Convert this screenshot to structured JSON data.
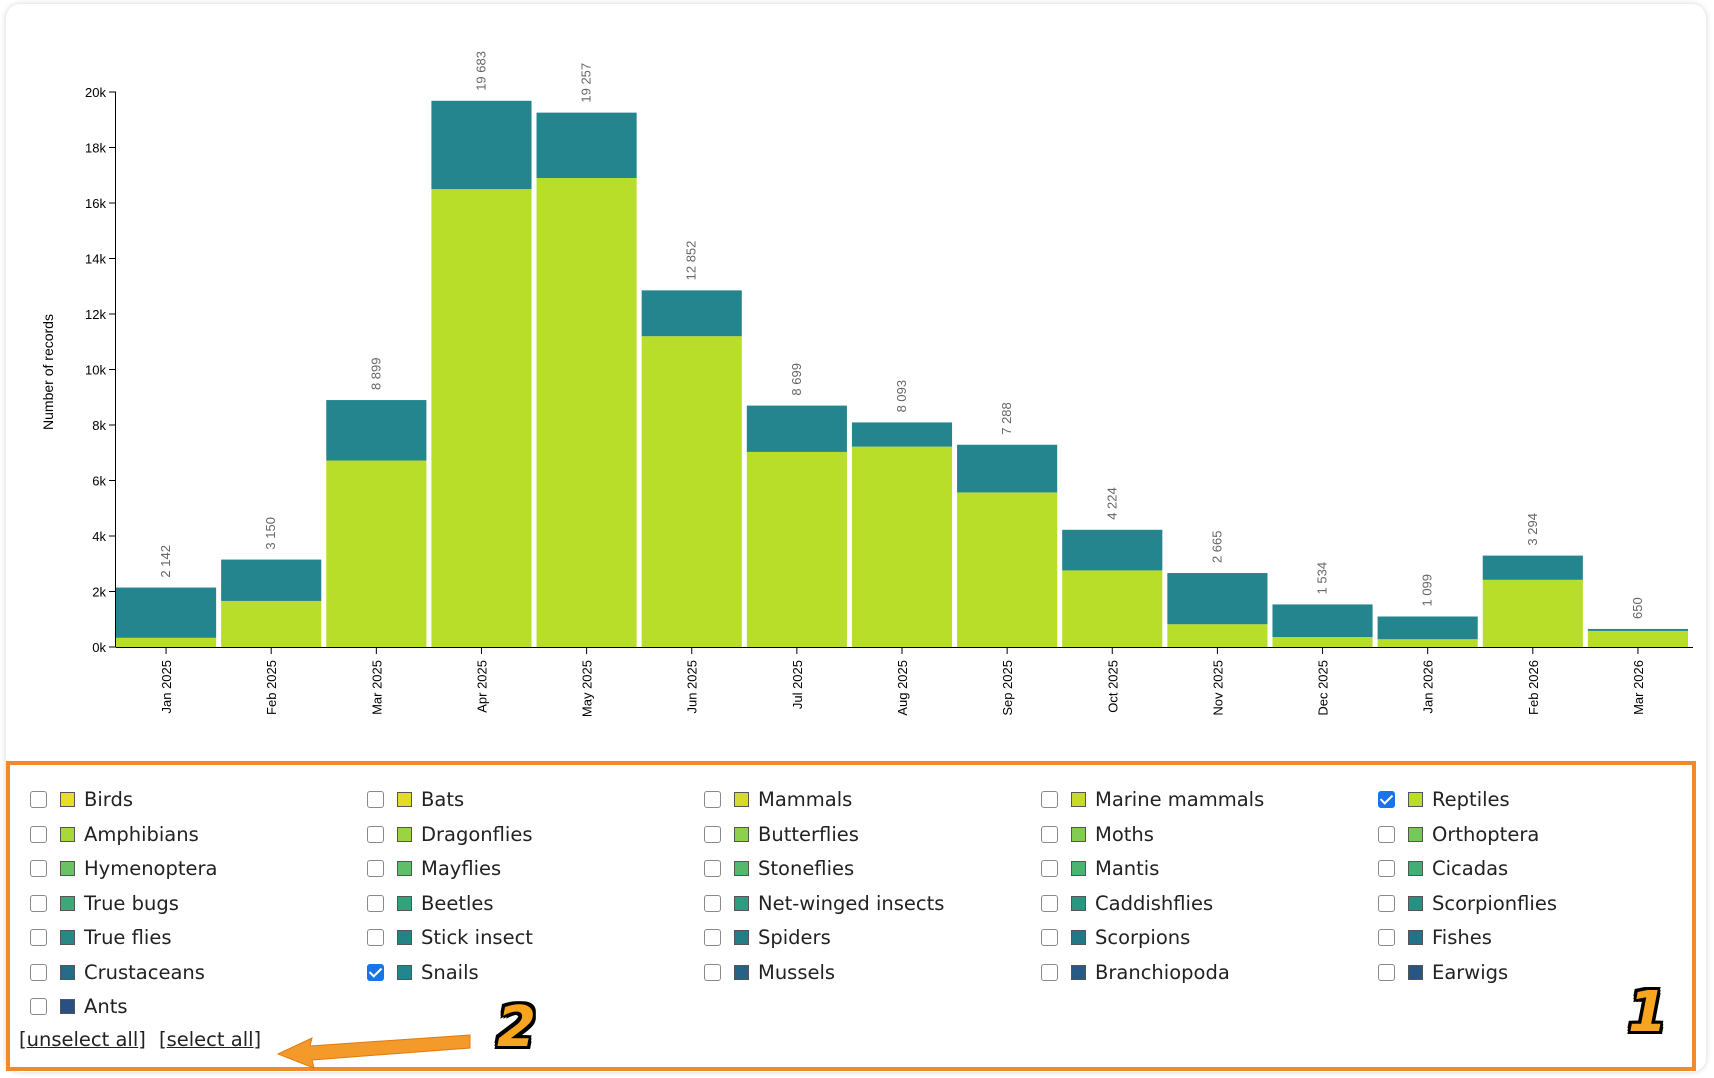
{
  "chart_data": {
    "type": "bar",
    "stacked": true,
    "ylabel": "Number of records",
    "ylim": [
      0,
      20000
    ],
    "yticks": [
      "0k",
      "2k",
      "4k",
      "6k",
      "8k",
      "10k",
      "12k",
      "14k",
      "16k",
      "18k",
      "20k"
    ],
    "categories": [
      "Jan 2025",
      "Feb 2025",
      "Mar 2025",
      "Apr 2025",
      "May 2025",
      "Jun 2025",
      "Jul 2025",
      "Aug 2025",
      "Sep 2025",
      "Oct 2025",
      "Nov 2025",
      "Dec 2025",
      "Jan 2026",
      "Feb 2026",
      "Mar 2026"
    ],
    "totals_labels": [
      "2 142",
      "3 150",
      "8 899",
      "19 683",
      "19 257",
      "12 852",
      "8 699",
      "8 093",
      "7 288",
      "4 224",
      "2 665",
      "1 534",
      "1 099",
      "3 294",
      "650"
    ],
    "series": [
      {
        "name": "Reptiles",
        "color": "#b8de29",
        "values": [
          330,
          1660,
          6720,
          16500,
          16900,
          11200,
          7030,
          7220,
          5570,
          2760,
          820,
          360,
          280,
          2420,
          580
        ]
      },
      {
        "name": "Snails",
        "color": "#25858e",
        "values": [
          1812,
          1490,
          2179,
          3183,
          2357,
          1652,
          1669,
          873,
          1718,
          1464,
          1845,
          1174,
          819,
          874,
          70
        ]
      }
    ]
  },
  "legend": {
    "items": [
      {
        "label": "Birds",
        "color": "#e8de28",
        "checked": false
      },
      {
        "label": "Bats",
        "color": "#e2dc29",
        "checked": false
      },
      {
        "label": "Mammals",
        "color": "#d4db2a",
        "checked": false
      },
      {
        "label": "Marine mammals",
        "color": "#c7d92b",
        "checked": false
      },
      {
        "label": "Reptiles",
        "color": "#b8de29",
        "checked": true
      },
      {
        "label": "Amphibians",
        "color": "#a8d93a",
        "checked": false
      },
      {
        "label": "Dragonflies",
        "color": "#9bd443",
        "checked": false
      },
      {
        "label": "Butterflies",
        "color": "#8fd04a",
        "checked": false
      },
      {
        "label": "Moths",
        "color": "#82cc52",
        "checked": false
      },
      {
        "label": "Orthoptera",
        "color": "#76c85a",
        "checked": false
      },
      {
        "label": "Hymenoptera",
        "color": "#6ac362",
        "checked": false
      },
      {
        "label": "Mayflies",
        "color": "#60be66",
        "checked": false
      },
      {
        "label": "Stoneflies",
        "color": "#55b96c",
        "checked": false
      },
      {
        "label": "Mantis",
        "color": "#4bb470",
        "checked": false
      },
      {
        "label": "Cicadas",
        "color": "#42ae74",
        "checked": false
      },
      {
        "label": "True bugs",
        "color": "#3aa878",
        "checked": false
      },
      {
        "label": "Beetles",
        "color": "#33a27b",
        "checked": false
      },
      {
        "label": "Net-winged insects",
        "color": "#2e9c7e",
        "checked": false
      },
      {
        "label": "Caddishflies",
        "color": "#2a9680",
        "checked": false
      },
      {
        "label": "Scorpionflies",
        "color": "#279082",
        "checked": false
      },
      {
        "label": "True flies",
        "color": "#258a84",
        "checked": false
      },
      {
        "label": "Stick insect",
        "color": "#248485",
        "checked": false
      },
      {
        "label": "Spiders",
        "color": "#237e86",
        "checked": false
      },
      {
        "label": "Scorpions",
        "color": "#237887",
        "checked": false
      },
      {
        "label": "Fishes",
        "color": "#247287",
        "checked": false
      },
      {
        "label": "Crustaceans",
        "color": "#246c87",
        "checked": false
      },
      {
        "label": "Snails",
        "color": "#25858e",
        "checked": true
      },
      {
        "label": "Mussels",
        "color": "#266186",
        "checked": false
      },
      {
        "label": "Branchiopoda",
        "color": "#275b85",
        "checked": false
      },
      {
        "label": "Earwigs",
        "color": "#285584",
        "checked": false
      },
      {
        "label": "Ants",
        "color": "#2a4f83",
        "checked": false
      }
    ]
  },
  "controls": {
    "unselect_all": "unselect all",
    "select_all": "select all",
    "bracket_open": "[",
    "bracket_close": "]"
  },
  "annotations": {
    "marker_1": "1",
    "marker_2": "2",
    "highlight_color": "#f08a2c"
  }
}
